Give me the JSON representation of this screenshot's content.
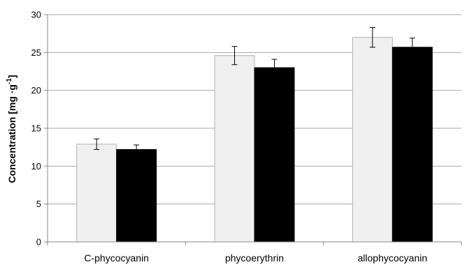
{
  "chart_data": {
    "type": "bar",
    "categories": [
      "C-phycocyanin",
      "phycoerythrin",
      "allophycocyanin"
    ],
    "series": [
      {
        "values": [
          12.9,
          24.6,
          27.0
        ],
        "errors": [
          0.7,
          1.2,
          1.3
        ],
        "color": "#f0f0f0"
      },
      {
        "values": [
          12.2,
          23.0,
          25.7
        ],
        "errors": [
          0.6,
          1.1,
          1.2
        ],
        "color": "#000000"
      }
    ],
    "ylabel": "Concentration [mg ·g",
    "ylabel_sup": "-1",
    "ylabel_close": "]",
    "ylim": [
      0,
      30
    ],
    "yticks": [
      0,
      5,
      10,
      15,
      20,
      25,
      30
    ],
    "grid": true,
    "gridColor": "#a6a6a6",
    "axisColor": "#888888",
    "legend": "none"
  }
}
